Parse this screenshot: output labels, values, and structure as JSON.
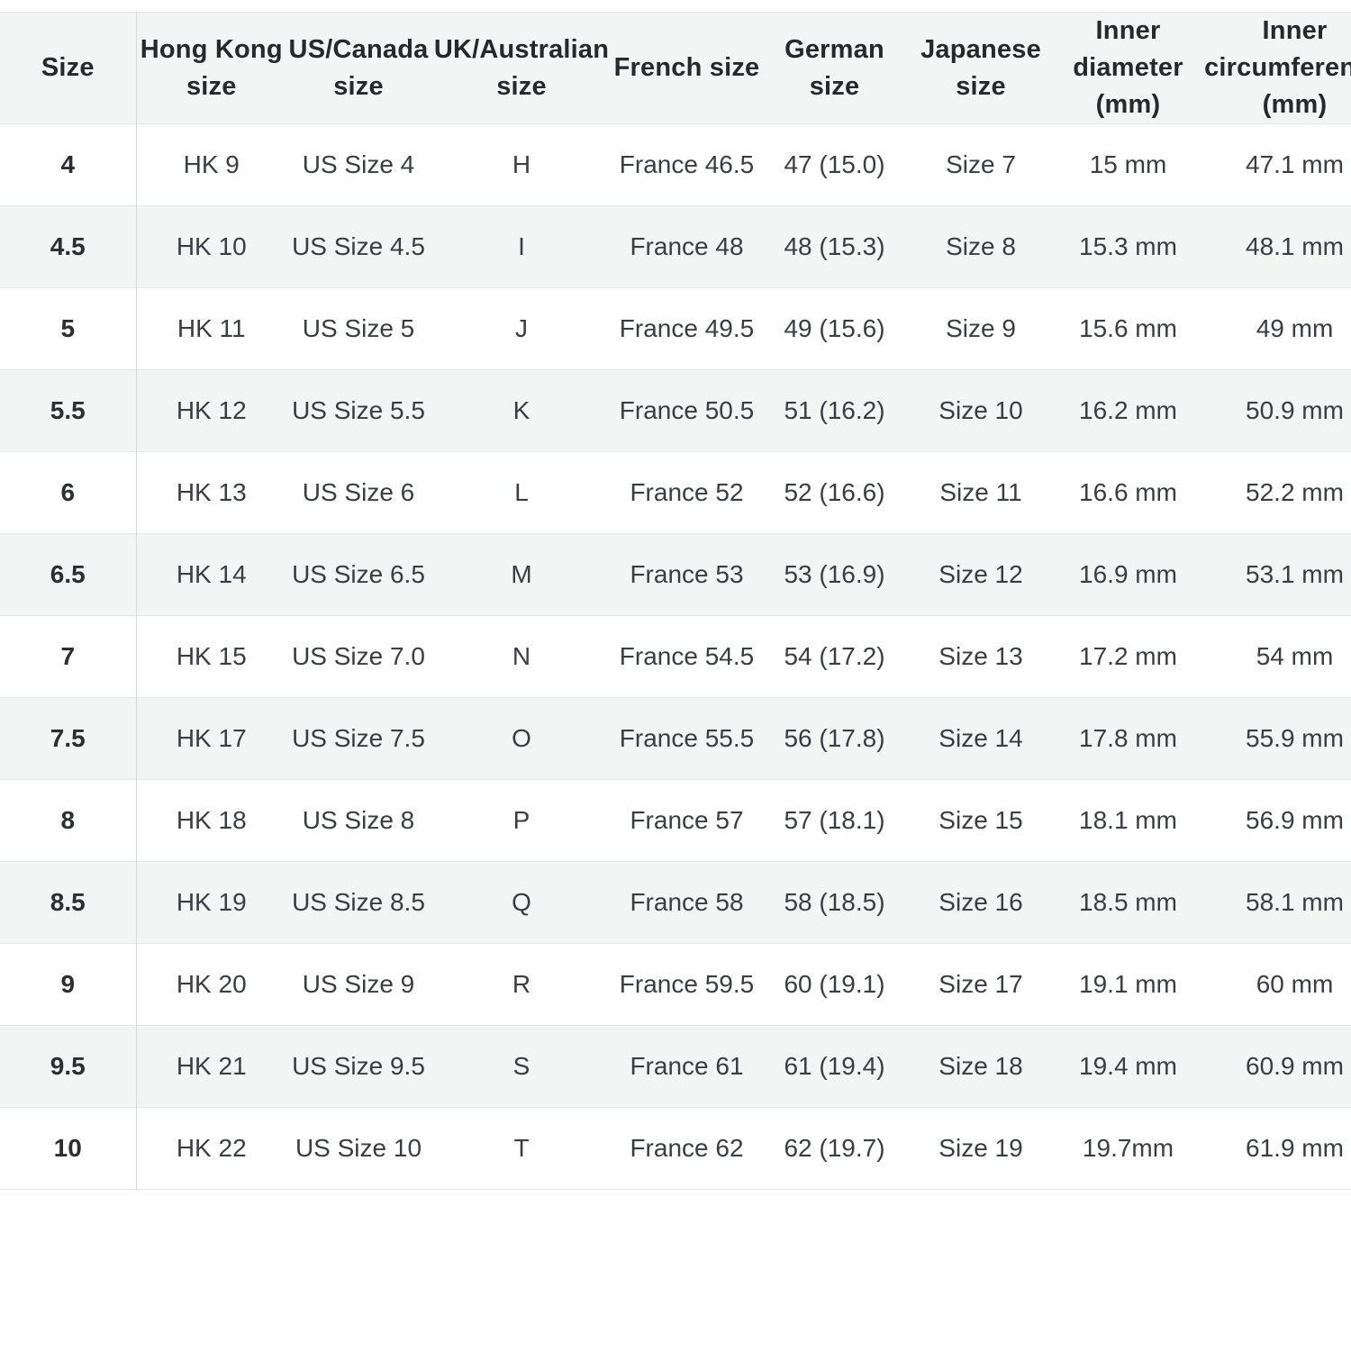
{
  "table": {
    "name": "ring-size-conversion-table",
    "columns": [
      {
        "id": "size",
        "lines": [
          "Size"
        ]
      },
      {
        "id": "hong-kong-size",
        "lines": [
          "Hong Kong",
          "size"
        ]
      },
      {
        "id": "us-canada-size",
        "lines": [
          "US/Canada",
          "size"
        ]
      },
      {
        "id": "uk-australian-size",
        "lines": [
          "UK/Australian",
          "size"
        ]
      },
      {
        "id": "french-size",
        "lines": [
          "French size"
        ]
      },
      {
        "id": "german-size",
        "lines": [
          "German",
          "size"
        ]
      },
      {
        "id": "japanese-size",
        "lines": [
          "Japanese",
          "size"
        ]
      },
      {
        "id": "inner-diameter",
        "lines": [
          "Inner",
          "diameter",
          "(mm)"
        ]
      },
      {
        "id": "inner-circumference",
        "lines": [
          "Inner",
          "circumference",
          "(mm)"
        ]
      }
    ],
    "rows": [
      [
        "4",
        "HK 9",
        "US Size 4",
        "H",
        "France 46.5",
        "47 (15.0)",
        "Size 7",
        "15 mm",
        "47.1 mm"
      ],
      [
        "4.5",
        "HK 10",
        "US Size 4.5",
        "I",
        "France 48",
        "48 (15.3)",
        "Size 8",
        "15.3 mm",
        "48.1 mm"
      ],
      [
        "5",
        "HK 11",
        "US Size 5",
        "J",
        "France 49.5",
        "49 (15.6)",
        "Size 9",
        "15.6 mm",
        "49 mm"
      ],
      [
        "5.5",
        "HK 12",
        "US Size 5.5",
        "K",
        "France 50.5",
        "51 (16.2)",
        "Size 10",
        "16.2 mm",
        "50.9 mm"
      ],
      [
        "6",
        "HK 13",
        "US Size 6",
        "L",
        "France 52",
        "52 (16.6)",
        "Size 11",
        "16.6 mm",
        "52.2 mm"
      ],
      [
        "6.5",
        "HK 14",
        "US Size 6.5",
        "M",
        "France 53",
        "53 (16.9)",
        "Size 12",
        "16.9 mm",
        "53.1 mm"
      ],
      [
        "7",
        "HK 15",
        "US Size 7.0",
        "N",
        "France 54.5",
        "54 (17.2)",
        "Size 13",
        "17.2 mm",
        "54 mm"
      ],
      [
        "7.5",
        "HK 17",
        "US Size 7.5",
        "O",
        "France 55.5",
        "56 (17.8)",
        "Size 14",
        "17.8 mm",
        "55.9 mm"
      ],
      [
        "8",
        "HK 18",
        "US Size 8",
        "P",
        "France 57",
        "57 (18.1)",
        "Size 15",
        "18.1 mm",
        "56.9 mm"
      ],
      [
        "8.5",
        "HK 19",
        "US Size 8.5",
        "Q",
        "France 58",
        "58 (18.5)",
        "Size 16",
        "18.5 mm",
        "58.1 mm"
      ],
      [
        "9",
        "HK 20",
        "US Size 9",
        "R",
        "France 59.5",
        "60 (19.1)",
        "Size 17",
        "19.1 mm",
        "60 mm"
      ],
      [
        "9.5",
        "HK 21",
        "US Size 9.5",
        "S",
        "France 61",
        "61 (19.4)",
        "Size 18",
        "19.4 mm",
        "60.9 mm"
      ],
      [
        "10",
        "HK 22",
        "US Size 10",
        "T",
        "France 62",
        "62 (19.7)",
        "Size 19",
        "19.7mm",
        "61.9 mm"
      ]
    ]
  },
  "colors": {
    "header_background": "#f3f4f4",
    "stripe_background": "#f3f4f4",
    "row_background": "#ffffff",
    "header_text": "#26282b",
    "cell_text": "#3a3d41",
    "row_border": "#e6e7e7",
    "column_divider": "#d7d8d9"
  }
}
